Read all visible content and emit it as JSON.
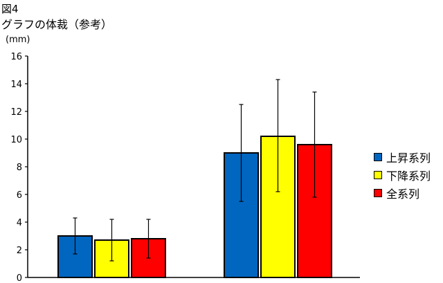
{
  "figure_label": "図4",
  "chart_data": {
    "type": "bar",
    "title": "グラフの体裁（参考）",
    "unit_label": "(mm)",
    "categories": [
      "",
      ""
    ],
    "ylim": [
      0,
      16
    ],
    "yticks": [
      "0",
      "2",
      "4",
      "6",
      "8",
      "10",
      "12",
      "14",
      "16"
    ],
    "grid": false,
    "legend_position": "right",
    "series": [
      {
        "name": "上昇系列",
        "color": "#0066c0",
        "values": [
          3.0,
          9.0
        ],
        "err_low": [
          1.7,
          5.5
        ],
        "err_high": [
          4.3,
          12.5
        ]
      },
      {
        "name": "下降系列",
        "color": "#ffff00",
        "values": [
          2.7,
          10.2
        ],
        "err_low": [
          1.2,
          6.2
        ],
        "err_high": [
          4.2,
          14.3
        ]
      },
      {
        "name": "全系列",
        "color": "#ff0000",
        "values": [
          2.8,
          9.6
        ],
        "err_low": [
          1.4,
          5.8
        ],
        "err_high": [
          4.2,
          13.4
        ]
      }
    ]
  }
}
